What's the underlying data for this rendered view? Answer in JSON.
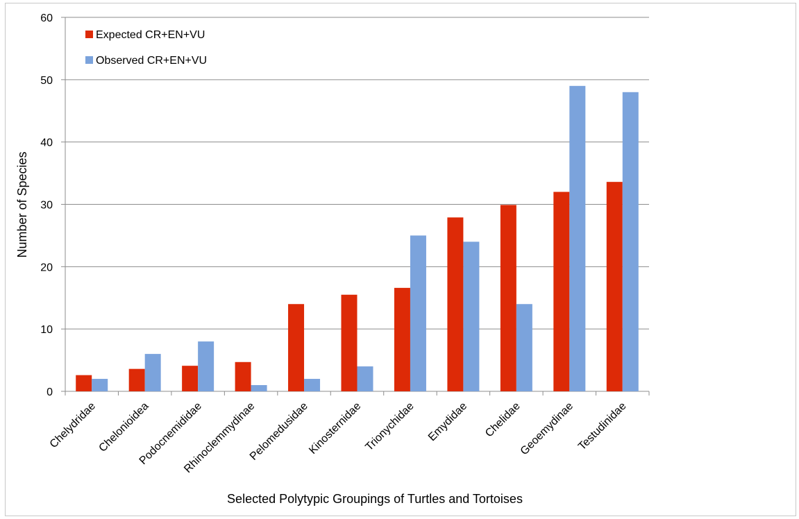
{
  "chart_data": {
    "type": "bar",
    "categories": [
      "Chelydridae",
      "Chelonioidea",
      "Podocnemididae",
      "Rhinoclemmydinae",
      "Pelomedusidae",
      "Kinosternidae",
      "Trionychidae",
      "Emydidae",
      "Chelidae",
      "Geoemydinae",
      "Testudinidae"
    ],
    "series": [
      {
        "name": "Expected CR+EN+VU",
        "color": "#dd2a07",
        "values": [
          2.6,
          3.6,
          4.1,
          4.7,
          14.0,
          15.5,
          16.6,
          27.9,
          29.9,
          32.0,
          33.6
        ]
      },
      {
        "name": "Observed CR+EN+VU",
        "color": "#7ba3dc",
        "values": [
          2,
          6,
          8,
          1,
          2,
          4,
          25,
          24,
          14,
          49,
          48
        ]
      }
    ],
    "xlabel": "Selected Polytypic Groupings of Turtles and Tortoises",
    "ylabel": "Number of Species",
    "ylim": [
      0,
      60
    ],
    "yticks": [
      0,
      10,
      20,
      30,
      40,
      50,
      60
    ],
    "grid": "horizontal",
    "legend_position": "top-left"
  }
}
